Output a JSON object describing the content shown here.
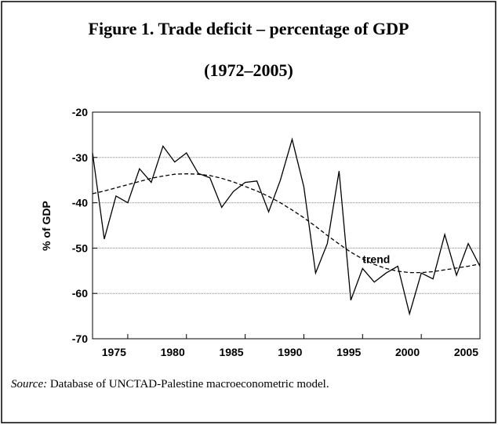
{
  "chart_data": {
    "type": "line",
    "title_lines": [
      "Figure 1. Trade deficit – percentage of GDP",
      "(1972–2005)"
    ],
    "y_label": "% of GDP",
    "x": [
      1972,
      1973,
      1974,
      1975,
      1976,
      1977,
      1978,
      1979,
      1980,
      1981,
      1982,
      1983,
      1984,
      1985,
      1986,
      1987,
      1988,
      1989,
      1990,
      1991,
      1992,
      1993,
      1994,
      1995,
      1996,
      1997,
      1998,
      1999,
      2000,
      2001,
      2002,
      2003,
      2004,
      2005
    ],
    "series": [
      {
        "color": "#000000",
        "dash": false,
        "values": [
          -29,
          -48,
          -38.5,
          -40,
          -32.5,
          -35.5,
          -27.5,
          -31,
          -29,
          -33.5,
          -34.5,
          -41,
          -37.5,
          -35.5,
          -35.2,
          -42,
          -35,
          -26,
          -36.5,
          -55.5,
          -49,
          -33,
          -61.5,
          -54.5,
          -57.5,
          -55.5,
          -54,
          -64.5,
          -55.5,
          -56.8,
          -47,
          -56,
          -49,
          -54
        ]
      },
      {
        "name": "trend",
        "color": "#000000",
        "dash": true,
        "values": [
          -38,
          -37.4,
          -36.7,
          -36,
          -35.3,
          -34.6,
          -34.1,
          -33.7,
          -33.6,
          -33.7,
          -34,
          -34.6,
          -35.4,
          -36.4,
          -37.4,
          -38.6,
          -40,
          -41.6,
          -43.3,
          -45.2,
          -47.2,
          -49.1,
          -50.9,
          -52.4,
          -53.6,
          -54.5,
          -55.1,
          -55.4,
          -55.4,
          -55.2,
          -54.8,
          -54.4,
          -54,
          -53.5
        ]
      }
    ],
    "xlim": [
      1972,
      2005
    ],
    "xticks": [
      1975,
      1980,
      1985,
      1990,
      1995,
      2000,
      2005
    ],
    "ylim": [
      -70,
      -20
    ],
    "yticks": [
      -20,
      -30,
      -40,
      -50,
      -60,
      -70
    ],
    "grid": true
  },
  "source": {
    "label": "Source:",
    "text": " Database of UNCTAD-Palestine macroeconometric model."
  }
}
